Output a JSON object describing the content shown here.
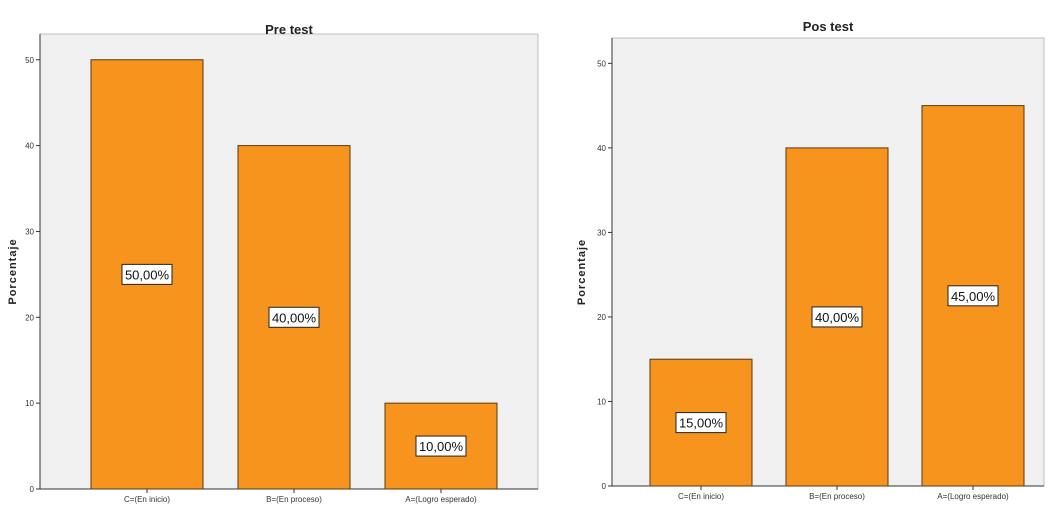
{
  "chart_data": [
    {
      "type": "bar",
      "title": "Pre test",
      "ylabel": "Porcentaje",
      "xlabel": "",
      "categories": [
        "C=(En inicio)",
        "B=(En proceso)",
        "A=(Logro esperado)"
      ],
      "values": [
        50,
        40,
        10
      ],
      "data_labels": [
        "50,00%",
        "40,00%",
        "10,00%"
      ],
      "ylim": [
        0,
        53
      ],
      "yticks": [
        0,
        10,
        20,
        30,
        40,
        50
      ],
      "ytick_labels": [
        "0",
        "10",
        "20",
        "30",
        "40",
        "50"
      ],
      "grid": false,
      "bar_color": "#f7941d",
      "plot_bg": "#f0f0f0"
    },
    {
      "type": "bar",
      "title": "Pos test",
      "ylabel": "Porcentaje",
      "xlabel": "",
      "categories": [
        "C=(En inicio)",
        "B=(En proceso)",
        "A=(Logro esperado)"
      ],
      "values": [
        15,
        40,
        45
      ],
      "data_labels": [
        "15,00%",
        "40,00%",
        "45,00%"
      ],
      "ylim": [
        0,
        53
      ],
      "yticks": [
        0,
        10,
        20,
        30,
        40,
        50
      ],
      "ytick_labels": [
        "0",
        "10",
        "20",
        "30",
        "40",
        "50"
      ],
      "grid": false,
      "bar_color": "#f7941d",
      "plot_bg": "#f0f0f0"
    }
  ]
}
